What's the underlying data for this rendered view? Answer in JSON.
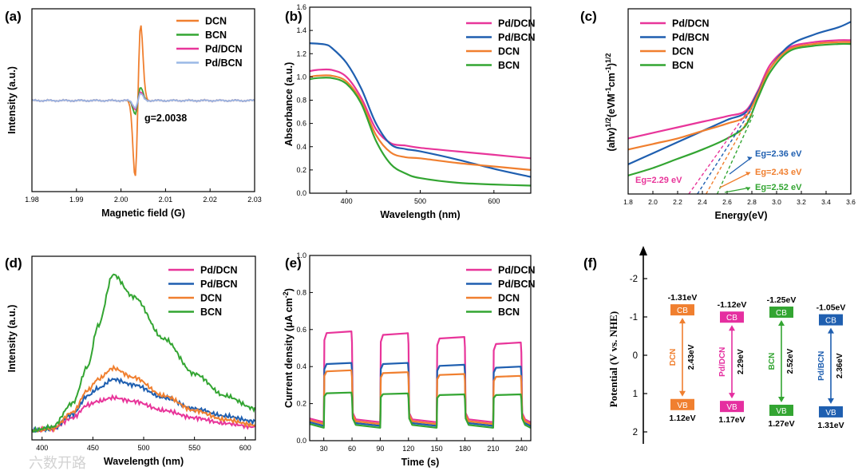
{
  "colors": {
    "pink": "#e8359a",
    "blue": "#1f5fb0",
    "orange": "#f07f2f",
    "green": "#33a532",
    "lightblue": "#9ab8e6",
    "magenta": "#e52fa0",
    "black": "#000000"
  },
  "panel_labels": [
    "(a)",
    "(b)",
    "(c)",
    "(d)",
    "(e)",
    "(f)"
  ],
  "watermark": "六数开路",
  "chart_data": [
    {
      "id": "a",
      "type": "line",
      "title": "",
      "xlabel": "Magnetic field (G)",
      "ylabel": "Intensity (a.u.)",
      "xlim": [
        1.98,
        2.03
      ],
      "xticks": [
        1.98,
        1.99,
        2.0,
        2.01,
        2.02,
        2.03
      ],
      "xtick_labels": [
        "1.98",
        "1.99",
        "2.00",
        "2.01",
        "2.02",
        "2.03"
      ],
      "annotation": "g=2.0038",
      "legend": [
        "DCN",
        "BCN",
        "Pd/DCN",
        "Pd/BCN"
      ],
      "series": [
        {
          "name": "DCN",
          "color": "orange",
          "kind": "epr",
          "amp": 1.0
        },
        {
          "name": "BCN",
          "color": "green",
          "kind": "epr",
          "amp": 0.17
        },
        {
          "name": "Pd/DCN",
          "color": "pink",
          "kind": "epr",
          "amp": 0.11
        },
        {
          "name": "Pd/BCN",
          "color": "lightblue",
          "kind": "epr",
          "amp": 0.09
        }
      ]
    },
    {
      "id": "b",
      "type": "line",
      "xlabel": "Wavelength (nm)",
      "ylabel": "Absorbance (a.u.)",
      "xlim": [
        350,
        650
      ],
      "ylim": [
        0,
        1.6
      ],
      "xticks": [
        400,
        500,
        600
      ],
      "xtick_labels": [
        "400",
        "500",
        "600"
      ],
      "yticks": [
        0,
        0.2,
        0.4,
        0.6,
        0.8,
        1.0,
        1.2,
        1.4,
        1.6
      ],
      "ytick_labels": [
        "0.0",
        "0.2",
        "0.4",
        "0.6",
        "0.8",
        "1.0",
        "1.2",
        "1.4",
        "1.6"
      ],
      "legend": [
        "Pd/DCN",
        "Pd/BCN",
        "DCN",
        "BCN"
      ],
      "series": [
        {
          "name": "Pd/DCN",
          "color": "pink",
          "x": [
            350,
            360,
            380,
            400,
            420,
            440,
            460,
            480,
            500,
            550,
            600,
            650
          ],
          "y": [
            1.05,
            1.06,
            1.06,
            1.0,
            0.82,
            0.55,
            0.43,
            0.41,
            0.39,
            0.36,
            0.33,
            0.3
          ]
        },
        {
          "name": "Pd/BCN",
          "color": "blue",
          "x": [
            350,
            370,
            380,
            400,
            420,
            440,
            460,
            480,
            500,
            550,
            600,
            650
          ],
          "y": [
            1.29,
            1.28,
            1.25,
            1.12,
            0.9,
            0.6,
            0.42,
            0.38,
            0.36,
            0.29,
            0.21,
            0.14
          ]
        },
        {
          "name": "DCN",
          "color": "orange",
          "x": [
            350,
            360,
            380,
            400,
            420,
            440,
            460,
            480,
            500,
            550,
            600,
            650
          ],
          "y": [
            1.0,
            1.01,
            1.01,
            0.96,
            0.79,
            0.5,
            0.35,
            0.31,
            0.3,
            0.26,
            0.23,
            0.2
          ]
        },
        {
          "name": "BCN",
          "color": "green",
          "x": [
            350,
            360,
            380,
            400,
            420,
            440,
            460,
            480,
            500,
            550,
            600,
            650
          ],
          "y": [
            0.98,
            0.99,
            0.99,
            0.94,
            0.77,
            0.45,
            0.25,
            0.17,
            0.13,
            0.09,
            0.075,
            0.065
          ]
        }
      ]
    },
    {
      "id": "c",
      "type": "line",
      "xlabel": "Energy(eV)",
      "ylabel": "(ahv)^1/2(eVM^-1cm^-1)^1/2",
      "xlim": [
        1.8,
        3.6
      ],
      "xticks": [
        1.8,
        2.0,
        2.2,
        2.4,
        2.6,
        2.8,
        3.0,
        3.2,
        3.4,
        3.6
      ],
      "xtick_labels": [
        "1.8",
        "2.0",
        "2.2",
        "2.4",
        "2.6",
        "2.8",
        "3.0",
        "3.2",
        "3.4",
        "3.6"
      ],
      "legend": [
        "Pd/DCN",
        "Pd/BCN",
        "DCN",
        "BCN"
      ],
      "annotations": [
        {
          "text": "Eg=2.36 eV",
          "color": "blue"
        },
        {
          "text": "Eg=2.29 eV",
          "color": "pink"
        },
        {
          "text": "Eg=2.43 eV",
          "color": "orange"
        },
        {
          "text": "Eg=2.52 eV",
          "color": "green"
        }
      ],
      "series": [
        {
          "name": "Pd/DCN",
          "color": "pink",
          "x": [
            1.8,
            2.0,
            2.2,
            2.4,
            2.6,
            2.75,
            2.85,
            2.95,
            3.1,
            3.3,
            3.5,
            3.6
          ],
          "y": [
            0.3,
            0.33,
            0.36,
            0.39,
            0.42,
            0.45,
            0.56,
            0.7,
            0.79,
            0.82,
            0.83,
            0.83
          ]
        },
        {
          "name": "Pd/BCN",
          "color": "blue",
          "x": [
            1.8,
            2.0,
            2.2,
            2.4,
            2.6,
            2.75,
            2.85,
            2.95,
            3.1,
            3.3,
            3.5,
            3.6
          ],
          "y": [
            0.16,
            0.22,
            0.28,
            0.34,
            0.4,
            0.44,
            0.55,
            0.68,
            0.8,
            0.86,
            0.9,
            0.93
          ]
        },
        {
          "name": "DCN",
          "color": "orange",
          "x": [
            1.8,
            2.0,
            2.2,
            2.4,
            2.6,
            2.75,
            2.85,
            2.95,
            3.1,
            3.3,
            3.5,
            3.6
          ],
          "y": [
            0.24,
            0.27,
            0.3,
            0.34,
            0.38,
            0.42,
            0.54,
            0.68,
            0.78,
            0.81,
            0.82,
            0.82
          ]
        },
        {
          "name": "BCN",
          "color": "green",
          "x": [
            1.8,
            2.0,
            2.2,
            2.4,
            2.6,
            2.75,
            2.85,
            2.95,
            3.1,
            3.3,
            3.5,
            3.6
          ],
          "y": [
            0.1,
            0.14,
            0.19,
            0.24,
            0.3,
            0.37,
            0.52,
            0.66,
            0.77,
            0.8,
            0.81,
            0.81
          ]
        }
      ],
      "tangents": [
        {
          "color": "pink",
          "x": [
            2.29,
            2.78
          ],
          "y": [
            0.0,
            0.46
          ]
        },
        {
          "color": "blue",
          "x": [
            2.36,
            2.8
          ],
          "y": [
            0.0,
            0.46
          ]
        },
        {
          "color": "orange",
          "x": [
            2.43,
            2.8
          ],
          "y": [
            0.0,
            0.44
          ]
        },
        {
          "color": "green",
          "x": [
            2.52,
            2.82
          ],
          "y": [
            0.0,
            0.44
          ]
        }
      ]
    },
    {
      "id": "d",
      "type": "line",
      "xlabel": "Wavelength (nm)",
      "ylabel": "Intensity (a.u.)",
      "xlim": [
        390,
        610
      ],
      "ylim": [
        0,
        1
      ],
      "xticks": [
        400,
        450,
        500,
        550,
        600
      ],
      "xtick_labels": [
        "400",
        "450",
        "500",
        "550",
        "600"
      ],
      "legend": [
        "Pd/DCN",
        "Pd/BCN",
        "DCN",
        "BCN"
      ],
      "series": [
        {
          "name": "Pd/DCN",
          "color": "pink",
          "x": [
            390,
            410,
            430,
            445,
            455,
            470,
            490,
            520,
            550,
            580,
            610
          ],
          "y": [
            0.05,
            0.06,
            0.12,
            0.19,
            0.21,
            0.23,
            0.21,
            0.16,
            0.12,
            0.09,
            0.07
          ]
        },
        {
          "name": "Pd/BCN",
          "color": "blue",
          "x": [
            390,
            410,
            430,
            445,
            455,
            470,
            490,
            520,
            550,
            580,
            610
          ],
          "y": [
            0.05,
            0.06,
            0.14,
            0.24,
            0.28,
            0.33,
            0.3,
            0.23,
            0.17,
            0.13,
            0.1
          ]
        },
        {
          "name": "DCN",
          "color": "orange",
          "x": [
            390,
            410,
            430,
            445,
            455,
            470,
            490,
            520,
            550,
            580,
            610
          ],
          "y": [
            0.05,
            0.06,
            0.15,
            0.27,
            0.33,
            0.39,
            0.34,
            0.24,
            0.16,
            0.11,
            0.08
          ]
        },
        {
          "name": "BCN",
          "color": "green",
          "x": [
            390,
            410,
            430,
            445,
            455,
            470,
            490,
            520,
            550,
            580,
            610
          ],
          "y": [
            0.05,
            0.07,
            0.2,
            0.4,
            0.62,
            0.9,
            0.78,
            0.55,
            0.36,
            0.24,
            0.17
          ]
        }
      ]
    },
    {
      "id": "e",
      "type": "line",
      "xlabel": "Time (s)",
      "ylabel": "Current density (μA cm^-2)",
      "xlim": [
        15,
        250
      ],
      "ylim": [
        0,
        1.0
      ],
      "xticks": [
        30,
        60,
        90,
        120,
        150,
        180,
        210,
        240
      ],
      "xtick_labels": [
        "30",
        "60",
        "90",
        "120",
        "150",
        "180",
        "210",
        "240"
      ],
      "yticks": [
        0,
        0.2,
        0.4,
        0.6,
        0.8,
        1.0
      ],
      "ytick_labels": [
        "0.0",
        "0.2",
        "0.4",
        "0.6",
        "0.8",
        "1.0"
      ],
      "legend": [
        "Pd/DCN",
        "Pd/BCN",
        "DCN",
        "BCN"
      ],
      "cycles": [
        [
          30,
          60
        ],
        [
          90,
          120
        ],
        [
          150,
          180
        ],
        [
          210,
          240
        ]
      ],
      "series": [
        {
          "name": "Pd/DCN",
          "color": "pink",
          "on": [
            0.59,
            0.58,
            0.56,
            0.53
          ],
          "dark": 0.1
        },
        {
          "name": "Pd/BCN",
          "color": "blue",
          "on": [
            0.42,
            0.42,
            0.41,
            0.4
          ],
          "dark": 0.08
        },
        {
          "name": "DCN",
          "color": "orange",
          "on": [
            0.38,
            0.37,
            0.36,
            0.35
          ],
          "dark": 0.09
        },
        {
          "name": "BCN",
          "color": "green",
          "on": [
            0.26,
            0.255,
            0.25,
            0.25
          ],
          "dark": 0.07
        }
      ]
    },
    {
      "id": "f",
      "type": "diagram",
      "ylabel": "Potential (V vs. NHE)",
      "ylim": [
        2.3,
        -2.7
      ],
      "yticks": [
        -2,
        -1,
        0,
        1,
        2
      ],
      "ytick_labels": [
        "-2",
        "-1",
        "0",
        "1",
        "2"
      ],
      "materials": [
        {
          "name": "DCN",
          "color": "orange",
          "cb": -1.31,
          "vb": 1.12,
          "cb_label": "-1.31eV",
          "vb_label": "1.12eV",
          "gap": "2.43eV",
          "cb_text": "CB",
          "vb_text": "VB"
        },
        {
          "name": "Pd/DCN",
          "color": "magenta",
          "cb": -1.12,
          "vb": 1.17,
          "cb_label": "-1.12eV",
          "vb_label": "1.17eV",
          "gap": "2.29eV",
          "cb_text": "CB",
          "vb_text": "VB"
        },
        {
          "name": "BCN",
          "color": "green",
          "cb": -1.25,
          "vb": 1.27,
          "cb_label": "-1.25eV",
          "vb_label": "1.27eV",
          "gap": "2.52eV",
          "cb_text": "CB",
          "vb_text": "VB"
        },
        {
          "name": "Pd/BCN",
          "color": "blue",
          "cb": -1.05,
          "vb": 1.31,
          "cb_label": "-1.05eV",
          "vb_label": "1.31eV",
          "gap": "2.36eV",
          "cb_text": "CB",
          "vb_text": "VB"
        }
      ]
    }
  ]
}
